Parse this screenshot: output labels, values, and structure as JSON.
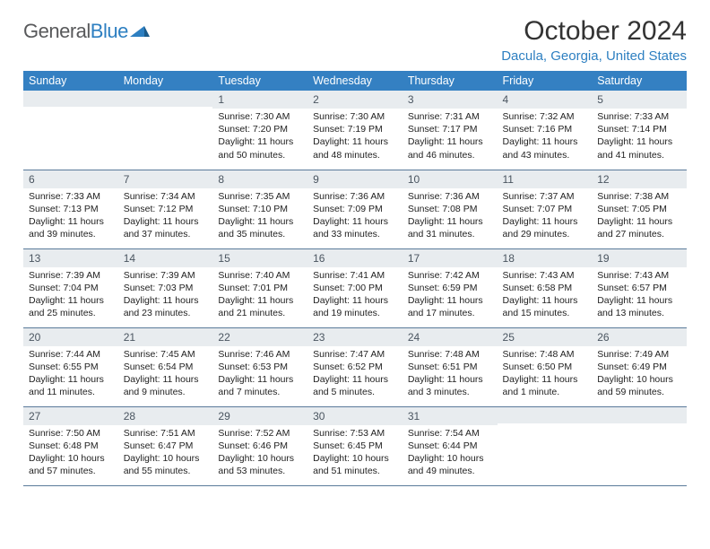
{
  "brand": {
    "general": "General",
    "blue": "Blue"
  },
  "title": "October 2024",
  "location": "Dacula, Georgia, United States",
  "weekday_header_bg": "#3480c2",
  "weekday_header_fg": "#ffffff",
  "daynum_bg": "#e8ecef",
  "border_color": "#5a7a9a",
  "text_color": "#222222",
  "weekdays": [
    "Sunday",
    "Monday",
    "Tuesday",
    "Wednesday",
    "Thursday",
    "Friday",
    "Saturday"
  ],
  "weeks": [
    [
      null,
      null,
      {
        "n": "1",
        "sr": "Sunrise: 7:30 AM",
        "ss": "Sunset: 7:20 PM",
        "d1": "Daylight: 11 hours",
        "d2": "and 50 minutes."
      },
      {
        "n": "2",
        "sr": "Sunrise: 7:30 AM",
        "ss": "Sunset: 7:19 PM",
        "d1": "Daylight: 11 hours",
        "d2": "and 48 minutes."
      },
      {
        "n": "3",
        "sr": "Sunrise: 7:31 AM",
        "ss": "Sunset: 7:17 PM",
        "d1": "Daylight: 11 hours",
        "d2": "and 46 minutes."
      },
      {
        "n": "4",
        "sr": "Sunrise: 7:32 AM",
        "ss": "Sunset: 7:16 PM",
        "d1": "Daylight: 11 hours",
        "d2": "and 43 minutes."
      },
      {
        "n": "5",
        "sr": "Sunrise: 7:33 AM",
        "ss": "Sunset: 7:14 PM",
        "d1": "Daylight: 11 hours",
        "d2": "and 41 minutes."
      }
    ],
    [
      {
        "n": "6",
        "sr": "Sunrise: 7:33 AM",
        "ss": "Sunset: 7:13 PM",
        "d1": "Daylight: 11 hours",
        "d2": "and 39 minutes."
      },
      {
        "n": "7",
        "sr": "Sunrise: 7:34 AM",
        "ss": "Sunset: 7:12 PM",
        "d1": "Daylight: 11 hours",
        "d2": "and 37 minutes."
      },
      {
        "n": "8",
        "sr": "Sunrise: 7:35 AM",
        "ss": "Sunset: 7:10 PM",
        "d1": "Daylight: 11 hours",
        "d2": "and 35 minutes."
      },
      {
        "n": "9",
        "sr": "Sunrise: 7:36 AM",
        "ss": "Sunset: 7:09 PM",
        "d1": "Daylight: 11 hours",
        "d2": "and 33 minutes."
      },
      {
        "n": "10",
        "sr": "Sunrise: 7:36 AM",
        "ss": "Sunset: 7:08 PM",
        "d1": "Daylight: 11 hours",
        "d2": "and 31 minutes."
      },
      {
        "n": "11",
        "sr": "Sunrise: 7:37 AM",
        "ss": "Sunset: 7:07 PM",
        "d1": "Daylight: 11 hours",
        "d2": "and 29 minutes."
      },
      {
        "n": "12",
        "sr": "Sunrise: 7:38 AM",
        "ss": "Sunset: 7:05 PM",
        "d1": "Daylight: 11 hours",
        "d2": "and 27 minutes."
      }
    ],
    [
      {
        "n": "13",
        "sr": "Sunrise: 7:39 AM",
        "ss": "Sunset: 7:04 PM",
        "d1": "Daylight: 11 hours",
        "d2": "and 25 minutes."
      },
      {
        "n": "14",
        "sr": "Sunrise: 7:39 AM",
        "ss": "Sunset: 7:03 PM",
        "d1": "Daylight: 11 hours",
        "d2": "and 23 minutes."
      },
      {
        "n": "15",
        "sr": "Sunrise: 7:40 AM",
        "ss": "Sunset: 7:01 PM",
        "d1": "Daylight: 11 hours",
        "d2": "and 21 minutes."
      },
      {
        "n": "16",
        "sr": "Sunrise: 7:41 AM",
        "ss": "Sunset: 7:00 PM",
        "d1": "Daylight: 11 hours",
        "d2": "and 19 minutes."
      },
      {
        "n": "17",
        "sr": "Sunrise: 7:42 AM",
        "ss": "Sunset: 6:59 PM",
        "d1": "Daylight: 11 hours",
        "d2": "and 17 minutes."
      },
      {
        "n": "18",
        "sr": "Sunrise: 7:43 AM",
        "ss": "Sunset: 6:58 PM",
        "d1": "Daylight: 11 hours",
        "d2": "and 15 minutes."
      },
      {
        "n": "19",
        "sr": "Sunrise: 7:43 AM",
        "ss": "Sunset: 6:57 PM",
        "d1": "Daylight: 11 hours",
        "d2": "and 13 minutes."
      }
    ],
    [
      {
        "n": "20",
        "sr": "Sunrise: 7:44 AM",
        "ss": "Sunset: 6:55 PM",
        "d1": "Daylight: 11 hours",
        "d2": "and 11 minutes."
      },
      {
        "n": "21",
        "sr": "Sunrise: 7:45 AM",
        "ss": "Sunset: 6:54 PM",
        "d1": "Daylight: 11 hours",
        "d2": "and 9 minutes."
      },
      {
        "n": "22",
        "sr": "Sunrise: 7:46 AM",
        "ss": "Sunset: 6:53 PM",
        "d1": "Daylight: 11 hours",
        "d2": "and 7 minutes."
      },
      {
        "n": "23",
        "sr": "Sunrise: 7:47 AM",
        "ss": "Sunset: 6:52 PM",
        "d1": "Daylight: 11 hours",
        "d2": "and 5 minutes."
      },
      {
        "n": "24",
        "sr": "Sunrise: 7:48 AM",
        "ss": "Sunset: 6:51 PM",
        "d1": "Daylight: 11 hours",
        "d2": "and 3 minutes."
      },
      {
        "n": "25",
        "sr": "Sunrise: 7:48 AM",
        "ss": "Sunset: 6:50 PM",
        "d1": "Daylight: 11 hours",
        "d2": "and 1 minute."
      },
      {
        "n": "26",
        "sr": "Sunrise: 7:49 AM",
        "ss": "Sunset: 6:49 PM",
        "d1": "Daylight: 10 hours",
        "d2": "and 59 minutes."
      }
    ],
    [
      {
        "n": "27",
        "sr": "Sunrise: 7:50 AM",
        "ss": "Sunset: 6:48 PM",
        "d1": "Daylight: 10 hours",
        "d2": "and 57 minutes."
      },
      {
        "n": "28",
        "sr": "Sunrise: 7:51 AM",
        "ss": "Sunset: 6:47 PM",
        "d1": "Daylight: 10 hours",
        "d2": "and 55 minutes."
      },
      {
        "n": "29",
        "sr": "Sunrise: 7:52 AM",
        "ss": "Sunset: 6:46 PM",
        "d1": "Daylight: 10 hours",
        "d2": "and 53 minutes."
      },
      {
        "n": "30",
        "sr": "Sunrise: 7:53 AM",
        "ss": "Sunset: 6:45 PM",
        "d1": "Daylight: 10 hours",
        "d2": "and 51 minutes."
      },
      {
        "n": "31",
        "sr": "Sunrise: 7:54 AM",
        "ss": "Sunset: 6:44 PM",
        "d1": "Daylight: 10 hours",
        "d2": "and 49 minutes."
      },
      null,
      null
    ]
  ]
}
